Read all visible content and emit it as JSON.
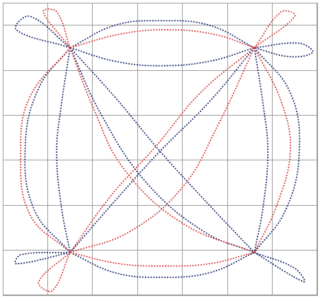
{
  "chart_data": {
    "type": "scatter",
    "grid": true,
    "tick_labels": false,
    "xlim": [
      0,
      7
    ],
    "xticks": [
      0,
      1,
      2,
      3,
      4,
      5,
      6,
      7
    ],
    "ylim": [
      0,
      6.5
    ],
    "yticks": [
      0,
      1,
      2,
      3,
      4,
      5,
      6
    ],
    "series": [
      {
        "color": "#d83a3a",
        "line_style": "dotted",
        "x": [
          5.6,
          4.4,
          3.4,
          2.4,
          1.5,
          null,
          1.5,
          2.0,
          2.7,
          4.0,
          5.6,
          null,
          1.5,
          0.6,
          0.4,
          0.6,
          1.5,
          null,
          5.6,
          6.2,
          6.4,
          6.1,
          5.6,
          null,
          1.5,
          2.6,
          3.6,
          4.7,
          5.6,
          null,
          1.5,
          2.6,
          3.6,
          4.6,
          5.6,
          null,
          5.6,
          4.8,
          4.0,
          2.8,
          1.5,
          null,
          5.6,
          6.2,
          6.5,
          5.6,
          null,
          1.5,
          0.8,
          1.1,
          1.5,
          null,
          1.5,
          1.2,
          0.9,
          1.5
        ],
        "y": [
          5.5,
          4.5,
          3.3,
          2.2,
          0.95,
          null,
          5.5,
          4.2,
          2.8,
          1.6,
          0.95,
          null,
          5.5,
          4.4,
          3.2,
          1.8,
          0.95,
          null,
          5.5,
          4.3,
          3.2,
          2.0,
          0.95,
          null,
          5.5,
          5.8,
          5.9,
          5.8,
          5.5,
          null,
          0.95,
          0.7,
          0.65,
          0.7,
          0.95,
          null,
          5.5,
          3.8,
          2.4,
          1.4,
          0.95,
          null,
          5.5,
          6.3,
          6.2,
          5.5,
          null,
          0.95,
          0.3,
          0.1,
          0.95,
          null,
          5.5,
          6.3,
          6.3,
          5.5
        ]
      },
      {
        "color": "#1c2a6e",
        "line_style": "dotted",
        "x": [
          1.5,
          2.5,
          3.5,
          4.6,
          5.6,
          null,
          5.6,
          4.6,
          3.5,
          2.5,
          1.5,
          null,
          1.5,
          0.8,
          0.5,
          0.7,
          1.5,
          null,
          5.6,
          6.4,
          6.6,
          6.3,
          5.6,
          null,
          1.5,
          2.5,
          3.5,
          4.6,
          5.6,
          null,
          1.5,
          2.5,
          3.5,
          4.6,
          5.6,
          null,
          1.5,
          1.3,
          1.2,
          1.3,
          1.5,
          null,
          5.6,
          5.8,
          5.9,
          5.8,
          5.6,
          null,
          1.5,
          2.2,
          3.2,
          4.5,
          5.6,
          null,
          1.5,
          2.5,
          3.5,
          4.6,
          5.6,
          null,
          1.5,
          0.6,
          0.3,
          1.5,
          null,
          5.6,
          6.6,
          6.9,
          6.4,
          5.6,
          null,
          1.5,
          0.4,
          0.3,
          1.5,
          null,
          5.6,
          6.5,
          6.7,
          5.6
        ],
        "y": [
          5.5,
          4.4,
          3.2,
          2.0,
          0.95,
          null,
          5.5,
          4.3,
          3.2,
          2.1,
          0.95,
          null,
          5.5,
          4.6,
          3.3,
          1.9,
          0.95,
          null,
          5.5,
          4.5,
          3.2,
          1.9,
          0.95,
          null,
          5.5,
          6.0,
          6.1,
          6.0,
          5.5,
          null,
          0.95,
          0.5,
          0.4,
          0.5,
          0.95,
          null,
          5.5,
          4.2,
          3.2,
          2.0,
          0.95,
          null,
          5.5,
          4.2,
          3.2,
          2.0,
          0.95,
          null,
          5.5,
          4.0,
          2.5,
          1.4,
          0.95,
          null,
          5.5,
          5.2,
          5.1,
          5.2,
          5.5,
          null,
          5.5,
          6.2,
          5.9,
          5.5,
          null,
          5.5,
          5.6,
          5.4,
          5.3,
          5.5,
          null,
          0.95,
          0.9,
          0.7,
          0.95,
          null,
          0.95,
          0.6,
          0.3,
          0.95
        ]
      }
    ]
  }
}
